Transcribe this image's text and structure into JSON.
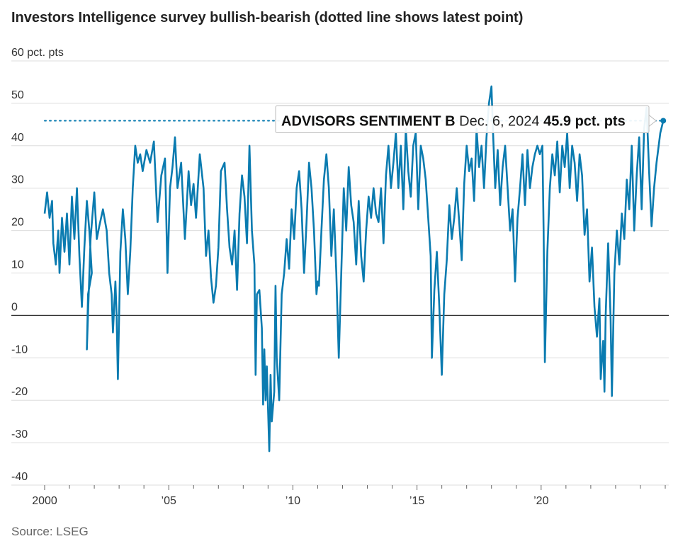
{
  "chart_data": {
    "type": "line",
    "title": "Investors Intelligence survey bullish-bearish (dotted line shows latest point)",
    "ylabel": "pct. pts",
    "y_unit_label": "60 pct. pts",
    "ylim": [
      -40,
      60
    ],
    "yticks": [
      {
        "value": 60,
        "label": "60 pct. pts"
      },
      {
        "value": 50,
        "label": "50"
      },
      {
        "value": 40,
        "label": "40"
      },
      {
        "value": 30,
        "label": "30"
      },
      {
        "value": 20,
        "label": "20"
      },
      {
        "value": 10,
        "label": "10"
      },
      {
        "value": 0,
        "label": "0"
      },
      {
        "value": -10,
        "label": "-10"
      },
      {
        "value": -20,
        "label": "-20"
      },
      {
        "value": -30,
        "label": "-30"
      },
      {
        "value": -40,
        "label": "-40"
      }
    ],
    "xlim": [
      2000,
      2025.0
    ],
    "xticks": [
      {
        "value": 2000,
        "label": "2000"
      },
      {
        "value": 2005,
        "label": "’05"
      },
      {
        "value": 2010,
        "label": "’10"
      },
      {
        "value": 2015,
        "label": "’15"
      },
      {
        "value": 2020,
        "label": "’20"
      }
    ],
    "series": [
      {
        "name": "ADVISORS SENTIMENT B",
        "color": "#0a7bb0",
        "points": [
          [
            2000.0,
            24
          ],
          [
            2000.1,
            29
          ],
          [
            2000.2,
            23
          ],
          [
            2000.3,
            27
          ],
          [
            2000.35,
            17
          ],
          [
            2000.45,
            12
          ],
          [
            2000.55,
            20
          ],
          [
            2000.6,
            10
          ],
          [
            2000.7,
            23
          ],
          [
            2000.8,
            15
          ],
          [
            2000.9,
            24
          ],
          [
            2001.0,
            12
          ],
          [
            2001.1,
            28
          ],
          [
            2001.2,
            18
          ],
          [
            2001.3,
            30
          ],
          [
            2001.4,
            14
          ],
          [
            2001.5,
            2
          ],
          [
            2001.6,
            16
          ],
          [
            2001.7,
            27
          ],
          [
            2001.8,
            20
          ],
          [
            2001.9,
            10
          ],
          [
            2001.75,
            5
          ],
          [
            2001.7,
            -8
          ],
          [
            2001.85,
            18
          ],
          [
            2002.0,
            29
          ],
          [
            2002.1,
            18
          ],
          [
            2002.2,
            21
          ],
          [
            2002.35,
            25
          ],
          [
            2002.5,
            20
          ],
          [
            2002.6,
            10
          ],
          [
            2002.7,
            5
          ],
          [
            2002.75,
            -4
          ],
          [
            2002.85,
            8
          ],
          [
            2002.9,
            0
          ],
          [
            2002.95,
            -15
          ],
          [
            2003.05,
            15
          ],
          [
            2003.15,
            25
          ],
          [
            2003.25,
            18
          ],
          [
            2003.35,
            5
          ],
          [
            2003.45,
            15
          ],
          [
            2003.55,
            30
          ],
          [
            2003.65,
            40
          ],
          [
            2003.75,
            36
          ],
          [
            2003.85,
            38
          ],
          [
            2003.95,
            34
          ],
          [
            2004.1,
            39
          ],
          [
            2004.25,
            36
          ],
          [
            2004.4,
            41
          ],
          [
            2004.55,
            22
          ],
          [
            2004.7,
            33
          ],
          [
            2004.85,
            37
          ],
          [
            2004.95,
            10
          ],
          [
            2005.05,
            30
          ],
          [
            2005.15,
            35
          ],
          [
            2005.25,
            42
          ],
          [
            2005.35,
            30
          ],
          [
            2005.5,
            36
          ],
          [
            2005.65,
            18
          ],
          [
            2005.8,
            34
          ],
          [
            2005.9,
            26
          ],
          [
            2006.0,
            31
          ],
          [
            2006.1,
            23
          ],
          [
            2006.25,
            38
          ],
          [
            2006.4,
            30
          ],
          [
            2006.5,
            14
          ],
          [
            2006.6,
            20
          ],
          [
            2006.7,
            9
          ],
          [
            2006.8,
            3
          ],
          [
            2006.9,
            7
          ],
          [
            2007.0,
            16
          ],
          [
            2007.1,
            34
          ],
          [
            2007.25,
            36
          ],
          [
            2007.35,
            25
          ],
          [
            2007.45,
            16
          ],
          [
            2007.55,
            12
          ],
          [
            2007.65,
            20
          ],
          [
            2007.75,
            6
          ],
          [
            2007.85,
            24
          ],
          [
            2007.95,
            33
          ],
          [
            2008.05,
            28
          ],
          [
            2008.15,
            17
          ],
          [
            2008.25,
            40
          ],
          [
            2008.35,
            20
          ],
          [
            2008.45,
            12
          ],
          [
            2008.5,
            -14
          ],
          [
            2008.55,
            5
          ],
          [
            2008.65,
            6
          ],
          [
            2008.75,
            -3
          ],
          [
            2008.8,
            -21
          ],
          [
            2008.85,
            -8
          ],
          [
            2008.9,
            -20
          ],
          [
            2008.95,
            -12
          ],
          [
            2009.05,
            -32
          ],
          [
            2009.1,
            -14
          ],
          [
            2009.15,
            -25
          ],
          [
            2009.25,
            -18
          ],
          [
            2009.3,
            7
          ],
          [
            2009.35,
            -10
          ],
          [
            2009.45,
            -20
          ],
          [
            2009.55,
            5
          ],
          [
            2009.65,
            10
          ],
          [
            2009.75,
            18
          ],
          [
            2009.85,
            11
          ],
          [
            2009.95,
            25
          ],
          [
            2010.05,
            18
          ],
          [
            2010.15,
            30
          ],
          [
            2010.25,
            34
          ],
          [
            2010.35,
            25
          ],
          [
            2010.45,
            10
          ],
          [
            2010.55,
            22
          ],
          [
            2010.65,
            36
          ],
          [
            2010.75,
            30
          ],
          [
            2010.85,
            20
          ],
          [
            2010.95,
            5
          ],
          [
            2011.0,
            8
          ],
          [
            2011.05,
            7
          ],
          [
            2011.15,
            20
          ],
          [
            2011.25,
            32
          ],
          [
            2011.35,
            38
          ],
          [
            2011.45,
            30
          ],
          [
            2011.55,
            14
          ],
          [
            2011.65,
            25
          ],
          [
            2011.75,
            10
          ],
          [
            2011.85,
            -10
          ],
          [
            2011.95,
            10
          ],
          [
            2012.05,
            30
          ],
          [
            2012.15,
            20
          ],
          [
            2012.25,
            35
          ],
          [
            2012.35,
            26
          ],
          [
            2012.45,
            22
          ],
          [
            2012.55,
            12
          ],
          [
            2012.65,
            27
          ],
          [
            2012.75,
            14
          ],
          [
            2012.85,
            8
          ],
          [
            2012.95,
            20
          ],
          [
            2013.05,
            28
          ],
          [
            2013.15,
            23
          ],
          [
            2013.25,
            30
          ],
          [
            2013.35,
            24
          ],
          [
            2013.45,
            22
          ],
          [
            2013.55,
            30
          ],
          [
            2013.65,
            17
          ],
          [
            2013.75,
            33
          ],
          [
            2013.85,
            40
          ],
          [
            2013.95,
            30
          ],
          [
            2014.05,
            36
          ],
          [
            2014.15,
            43
          ],
          [
            2014.25,
            30
          ],
          [
            2014.35,
            40
          ],
          [
            2014.45,
            25
          ],
          [
            2014.55,
            44
          ],
          [
            2014.65,
            34
          ],
          [
            2014.75,
            28
          ],
          [
            2014.85,
            40
          ],
          [
            2014.95,
            43
          ],
          [
            2015.05,
            25
          ],
          [
            2015.15,
            40
          ],
          [
            2015.25,
            37
          ],
          [
            2015.35,
            32
          ],
          [
            2015.45,
            23
          ],
          [
            2015.55,
            14
          ],
          [
            2015.6,
            -10
          ],
          [
            2015.7,
            6
          ],
          [
            2015.8,
            15
          ],
          [
            2015.9,
            2
          ],
          [
            2016.0,
            -14
          ],
          [
            2016.1,
            5
          ],
          [
            2016.2,
            13
          ],
          [
            2016.3,
            26
          ],
          [
            2016.4,
            18
          ],
          [
            2016.5,
            23
          ],
          [
            2016.6,
            30
          ],
          [
            2016.7,
            22
          ],
          [
            2016.8,
            13
          ],
          [
            2016.9,
            31
          ],
          [
            2017.0,
            40
          ],
          [
            2017.1,
            34
          ],
          [
            2017.2,
            37
          ],
          [
            2017.3,
            27
          ],
          [
            2017.4,
            44
          ],
          [
            2017.5,
            35
          ],
          [
            2017.6,
            40
          ],
          [
            2017.7,
            30
          ],
          [
            2017.8,
            42
          ],
          [
            2017.9,
            50
          ],
          [
            2018.0,
            54
          ],
          [
            2018.05,
            45
          ],
          [
            2018.15,
            30
          ],
          [
            2018.25,
            39
          ],
          [
            2018.35,
            26
          ],
          [
            2018.45,
            35
          ],
          [
            2018.55,
            40
          ],
          [
            2018.65,
            30
          ],
          [
            2018.75,
            20
          ],
          [
            2018.85,
            25
          ],
          [
            2018.95,
            8
          ],
          [
            2019.05,
            23
          ],
          [
            2019.15,
            30
          ],
          [
            2019.25,
            38
          ],
          [
            2019.35,
            26
          ],
          [
            2019.45,
            39
          ],
          [
            2019.55,
            30
          ],
          [
            2019.65,
            35
          ],
          [
            2019.75,
            38
          ],
          [
            2019.85,
            40
          ],
          [
            2019.95,
            38
          ],
          [
            2020.05,
            40
          ],
          [
            2020.1,
            20
          ],
          [
            2020.15,
            -11
          ],
          [
            2020.25,
            15
          ],
          [
            2020.35,
            30
          ],
          [
            2020.45,
            38
          ],
          [
            2020.55,
            33
          ],
          [
            2020.65,
            41
          ],
          [
            2020.75,
            29
          ],
          [
            2020.85,
            40
          ],
          [
            2020.95,
            35
          ],
          [
            2021.05,
            43
          ],
          [
            2021.15,
            30
          ],
          [
            2021.25,
            40
          ],
          [
            2021.35,
            36
          ],
          [
            2021.45,
            27
          ],
          [
            2021.55,
            38
          ],
          [
            2021.65,
            33
          ],
          [
            2021.75,
            19
          ],
          [
            2021.85,
            25
          ],
          [
            2021.95,
            8
          ],
          [
            2022.05,
            16
          ],
          [
            2022.15,
            2
          ],
          [
            2022.25,
            -5
          ],
          [
            2022.35,
            4
          ],
          [
            2022.4,
            -15
          ],
          [
            2022.5,
            -6
          ],
          [
            2022.55,
            -18
          ],
          [
            2022.6,
            0
          ],
          [
            2022.7,
            17
          ],
          [
            2022.75,
            8
          ],
          [
            2022.8,
            -1
          ],
          [
            2022.85,
            -19
          ],
          [
            2022.95,
            10
          ],
          [
            2023.05,
            20
          ],
          [
            2023.15,
            12
          ],
          [
            2023.25,
            24
          ],
          [
            2023.35,
            18
          ],
          [
            2023.45,
            32
          ],
          [
            2023.55,
            25
          ],
          [
            2023.65,
            40
          ],
          [
            2023.75,
            20
          ],
          [
            2023.85,
            33
          ],
          [
            2023.95,
            42
          ],
          [
            2024.05,
            25
          ],
          [
            2024.15,
            44
          ],
          [
            2024.25,
            49
          ],
          [
            2024.35,
            34
          ],
          [
            2024.45,
            21
          ],
          [
            2024.55,
            30
          ],
          [
            2024.65,
            36
          ],
          [
            2024.8,
            43
          ],
          [
            2024.92,
            45.9
          ]
        ]
      }
    ],
    "reference_line": {
      "value": 45.9,
      "style": "dotted"
    },
    "tooltip": {
      "series": "ADVISORS SENTIMENT B",
      "date": "Dec. 6, 2024",
      "value": "45.9 pct. pts"
    },
    "source": "Source: LSEG"
  }
}
